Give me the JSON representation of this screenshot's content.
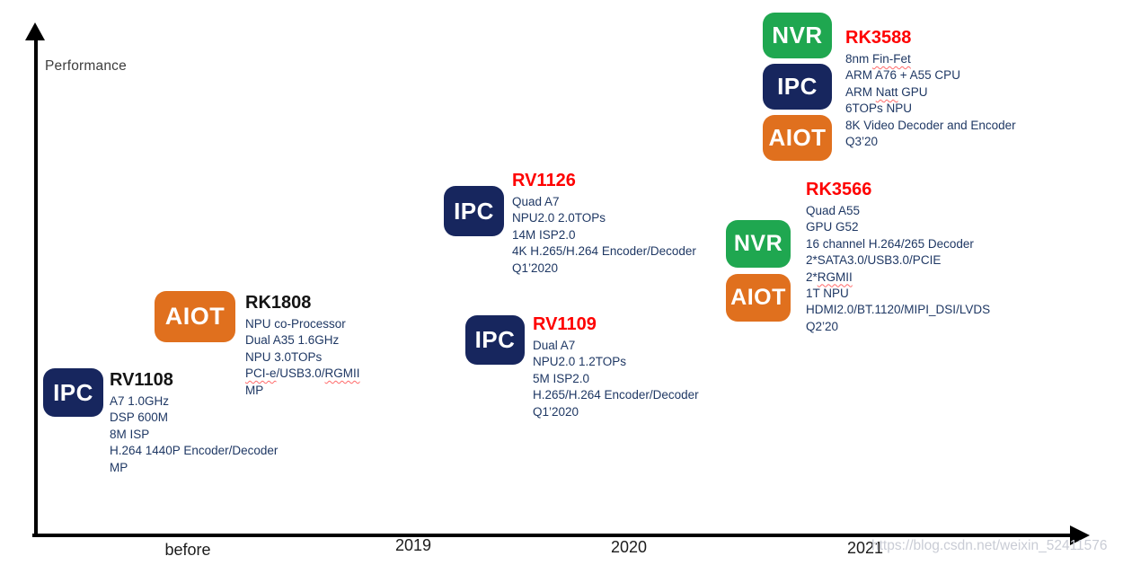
{
  "axes": {
    "y_label": "Performance",
    "x_ticks": [
      "before",
      "2019",
      "2020",
      "2021"
    ]
  },
  "badge_colors": {
    "IPC": "#17265E",
    "NVR": "#1FA750",
    "AIOT": "#E0701E"
  },
  "title_colors": {
    "red": "#FE0000",
    "black": "#141414"
  },
  "body_text_color": "#1F3864",
  "spellcheck_words": [
    "Fin-Fet",
    "Natt",
    "PCI-e",
    "RGMII"
  ],
  "watermark": "https://blog.csdn.net/weixin_52411576",
  "products": [
    {
      "id": "rv1108",
      "badges": [
        "IPC"
      ],
      "title": "RV1108",
      "lines": [
        "A7 1.0GHz",
        "DSP 600M",
        "8M ISP",
        "H.264 1440P Encoder/Decoder",
        "MP"
      ]
    },
    {
      "id": "rk1808",
      "badges": [
        "AIOT"
      ],
      "title": "RK1808",
      "lines": [
        "NPU co-Processor",
        "Dual A35 1.6GHz",
        "NPU 3.0TOPs",
        "PCI-e/USB3.0/RGMII",
        "MP"
      ]
    },
    {
      "id": "rv1126",
      "badges": [
        "IPC"
      ],
      "title": "RV1126",
      "lines": [
        "Quad A7",
        "NPU2.0 2.0TOPs",
        "14M ISP2.0",
        "4K H.265/H.264 Encoder/Decoder",
        "Q1’2020"
      ]
    },
    {
      "id": "rv1109",
      "badges": [
        "IPC"
      ],
      "title": "RV1109",
      "lines": [
        "Dual A7",
        "NPU2.0 1.2TOPs",
        "5M ISP2.0",
        "H.265/H.264 Encoder/Decoder",
        "Q1’2020"
      ]
    },
    {
      "id": "rk3588",
      "badges": [
        "NVR",
        "IPC",
        "AIOT"
      ],
      "title": "RK3588",
      "lines": [
        "8nm Fin-Fet",
        "ARM A76 + A55 CPU",
        "ARM Natt GPU",
        "6TOPs NPU",
        "8K Video Decoder and Encoder",
        "Q3’20"
      ]
    },
    {
      "id": "rk3566",
      "badges": [
        "NVR",
        "AIOT"
      ],
      "title": "RK3566",
      "lines": [
        "Quad A55",
        "GPU G52",
        "16 channel H.264/265 Decoder",
        "2*SATA3.0/USB3.0/PCIE",
        "2*RGMII",
        "1T NPU",
        "HDMI2.0/BT.1120/MIPI_DSI/LVDS",
        "Q2’20"
      ]
    }
  ]
}
